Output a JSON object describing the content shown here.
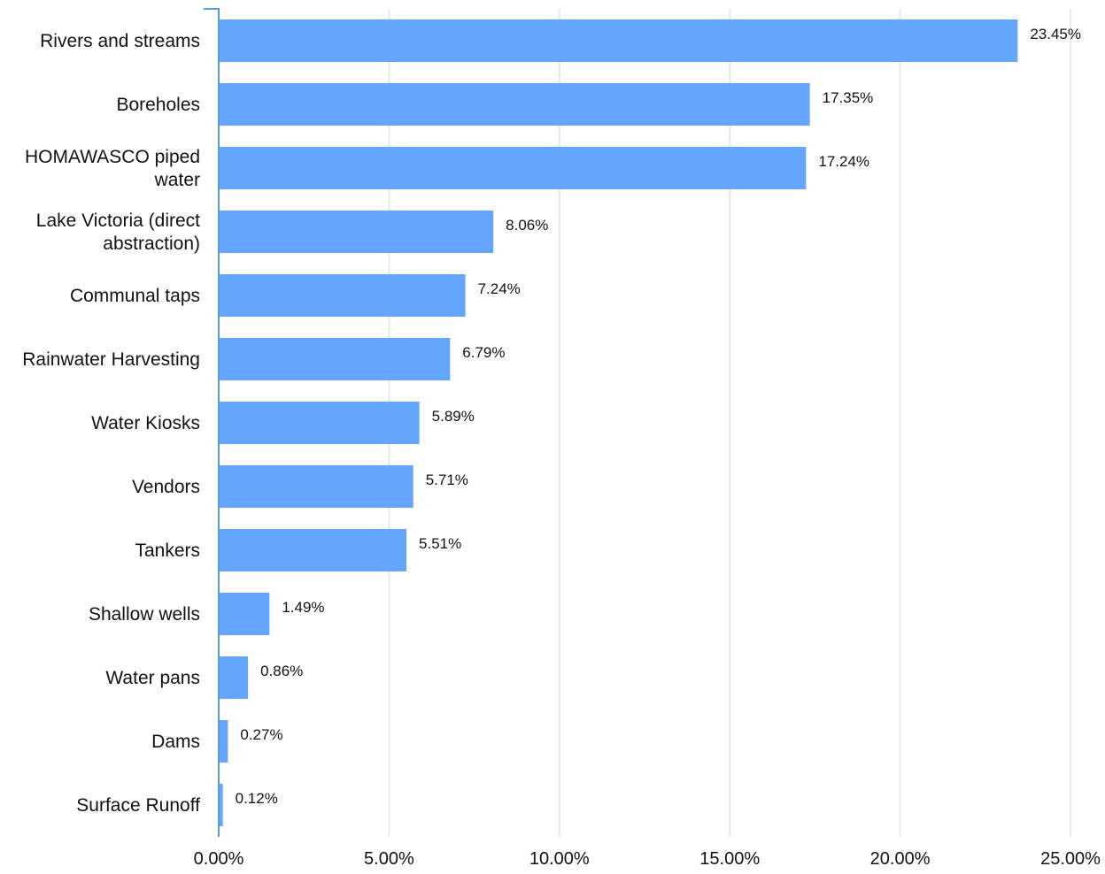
{
  "chart_data": {
    "type": "bar",
    "orientation": "horizontal",
    "categories": [
      [
        "Rivers and streams"
      ],
      [
        "Boreholes"
      ],
      [
        "HOMAWASCO piped",
        "water"
      ],
      [
        "Lake Victoria (direct",
        "abstraction)"
      ],
      [
        "Communal taps"
      ],
      [
        "Rainwater Harvesting"
      ],
      [
        "Water Kiosks"
      ],
      [
        "Vendors"
      ],
      [
        "Tankers"
      ],
      [
        "Shallow wells"
      ],
      [
        "Water pans"
      ],
      [
        "Dams"
      ],
      [
        "Surface Runoff"
      ]
    ],
    "values": [
      23.45,
      17.35,
      17.24,
      8.06,
      7.24,
      6.79,
      5.89,
      5.71,
      5.51,
      1.49,
      0.86,
      0.27,
      0.12
    ],
    "value_labels": [
      "23.45%",
      "17.35%",
      "17.24%",
      "8.06%",
      "7.24%",
      "6.79%",
      "5.89%",
      "5.71%",
      "5.51%",
      "1.49%",
      "0.86%",
      "0.27%",
      "0.12%"
    ],
    "xticks": [
      0,
      5,
      10,
      15,
      20,
      25
    ],
    "xtick_labels": [
      "0.00%",
      "5.00%",
      "10.00%",
      "15.00%",
      "20.00%",
      "25.00%"
    ],
    "xlim": [
      0,
      25
    ],
    "grid": "vertical",
    "title": "",
    "xlabel": "",
    "ylabel": "",
    "colors": {
      "bar": "#64a6ff",
      "grid": "#dbe9fb",
      "axis": "#5b9bd5"
    }
  }
}
